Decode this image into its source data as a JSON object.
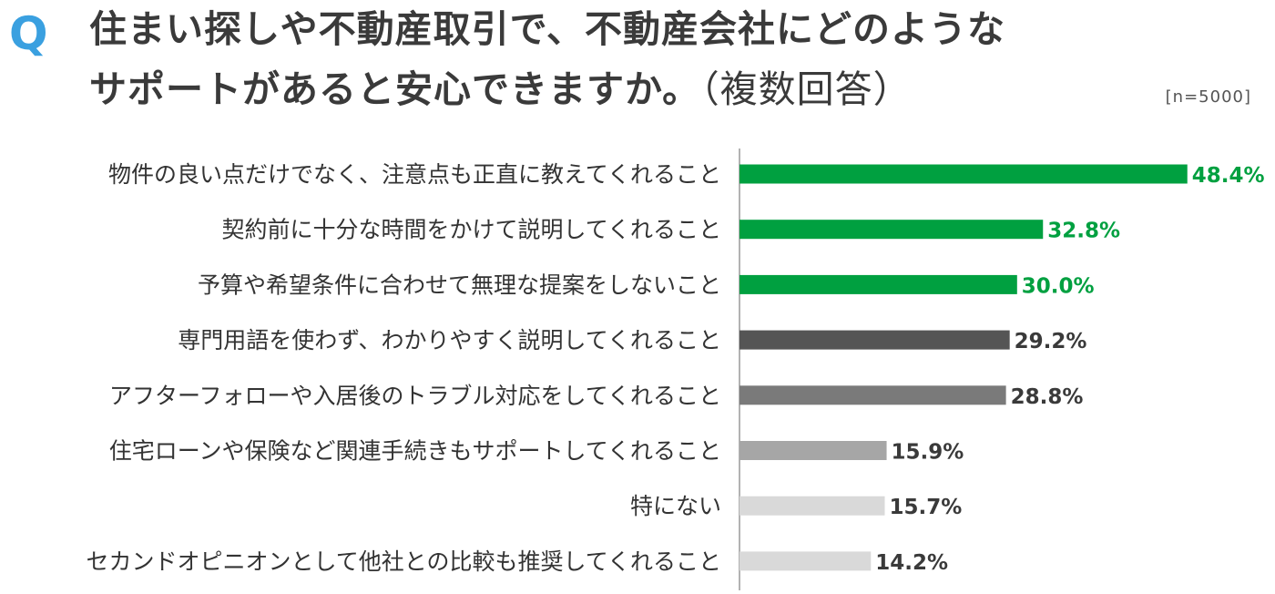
{
  "question": {
    "mark": "Q",
    "line1": "住まい探しや不動産取引で、不動産会社にどのような",
    "line2_main": "サポートがあると安心できますか。",
    "line2_sub": "（複数回答）",
    "sample": "[n=5000]"
  },
  "chart_data": {
    "type": "bar",
    "orientation": "horizontal",
    "value_suffix": "%",
    "xlim": [
      0,
      50
    ],
    "grid": false,
    "categories": [
      "物件の良い点だけでなく、注意点も正直に教えてくれること",
      "契約前に十分な時間をかけて説明してくれること",
      "予算や希望条件に合わせて無理な提案をしないこと",
      "専門用語を使わず、わかりやすく説明してくれること",
      "アフターフォローや入居後のトラブル対応をしてくれること",
      "住宅ローンや保険など関連手続きもサポートしてくれること",
      "特にない",
      "セカンドオピニオンとして他社との比較も推奨してくれること"
    ],
    "values": [
      48.4,
      32.8,
      30.0,
      29.2,
      28.8,
      15.9,
      15.7,
      14.2
    ],
    "labels": [
      "48.4%",
      "32.8%",
      "30.0%",
      "29.2%",
      "28.8%",
      "15.9%",
      "15.7%",
      "14.2%"
    ],
    "bar_colors": [
      "#00a040",
      "#00a040",
      "#00a040",
      "#555555",
      "#7a7a7a",
      "#a6a6a6",
      "#d9d9d9",
      "#d9d9d9"
    ],
    "label_colors": [
      "#00a040",
      "#00a040",
      "#00a040",
      "#3a3a3a",
      "#3a3a3a",
      "#3a3a3a",
      "#3a3a3a",
      "#3a3a3a"
    ]
  }
}
